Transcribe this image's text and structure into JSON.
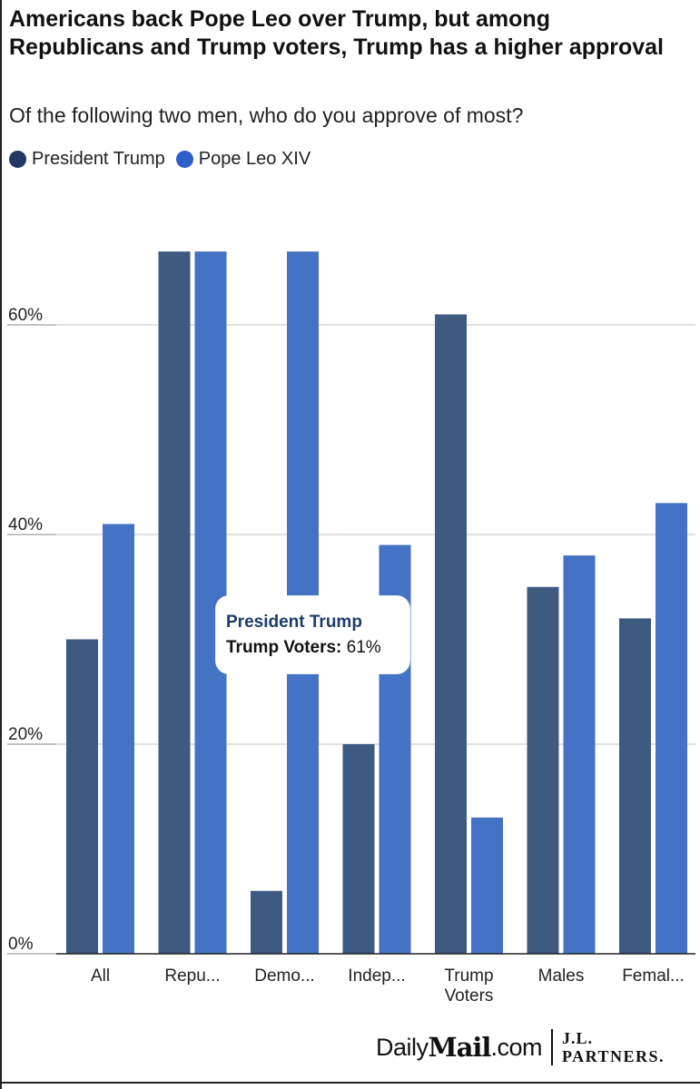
{
  "header": {
    "title": "Americans back Pope Leo over Trump, but among Republicans and Trump voters, Trump has a higher approval",
    "subtitle": "Of the following two men, who do you approve of most?"
  },
  "legend": [
    {
      "label": "President Trump",
      "color": "#3d5a80"
    },
    {
      "label": "Pope Leo XIV",
      "color": "#4472c4"
    }
  ],
  "tooltip": {
    "series": "President Trump",
    "category": "Trump Voters:",
    "value": "61%"
  },
  "branding": {
    "daily": "Daily",
    "mail": "Mail",
    "com": ".com",
    "partner_line1": "J.L.",
    "partner_line2": "PARTNERS."
  },
  "chart_data": {
    "type": "bar",
    "categories": [
      "All",
      "Repu...",
      "Demo...",
      "Indep...",
      "Trump Voters",
      "Males",
      "Femal..."
    ],
    "category_lines": [
      [
        "All"
      ],
      [
        "Repu..."
      ],
      [
        "Demo..."
      ],
      [
        "Indep..."
      ],
      [
        "Trump",
        "Voters"
      ],
      [
        "Males"
      ],
      [
        "Femal..."
      ]
    ],
    "series": [
      {
        "name": "President Trump",
        "color": "#3d5a80",
        "values": [
          30,
          67,
          6,
          20,
          61,
          35,
          32
        ]
      },
      {
        "name": "Pope Leo XIV",
        "color": "#4472c4",
        "values": [
          41,
          67,
          67,
          39,
          13,
          38,
          43
        ]
      }
    ],
    "yticks": [
      0,
      20,
      40,
      60
    ],
    "ytick_labels": [
      "0%",
      "20%",
      "40%",
      "60%"
    ],
    "ylim": [
      0,
      70
    ],
    "grid": true,
    "legend_position": "top-left",
    "title": "Americans back Pope Leo over Trump, but among Republicans and Trump voters, Trump has a higher approval",
    "subtitle": "Of the following two men, who do you approve of most?"
  }
}
